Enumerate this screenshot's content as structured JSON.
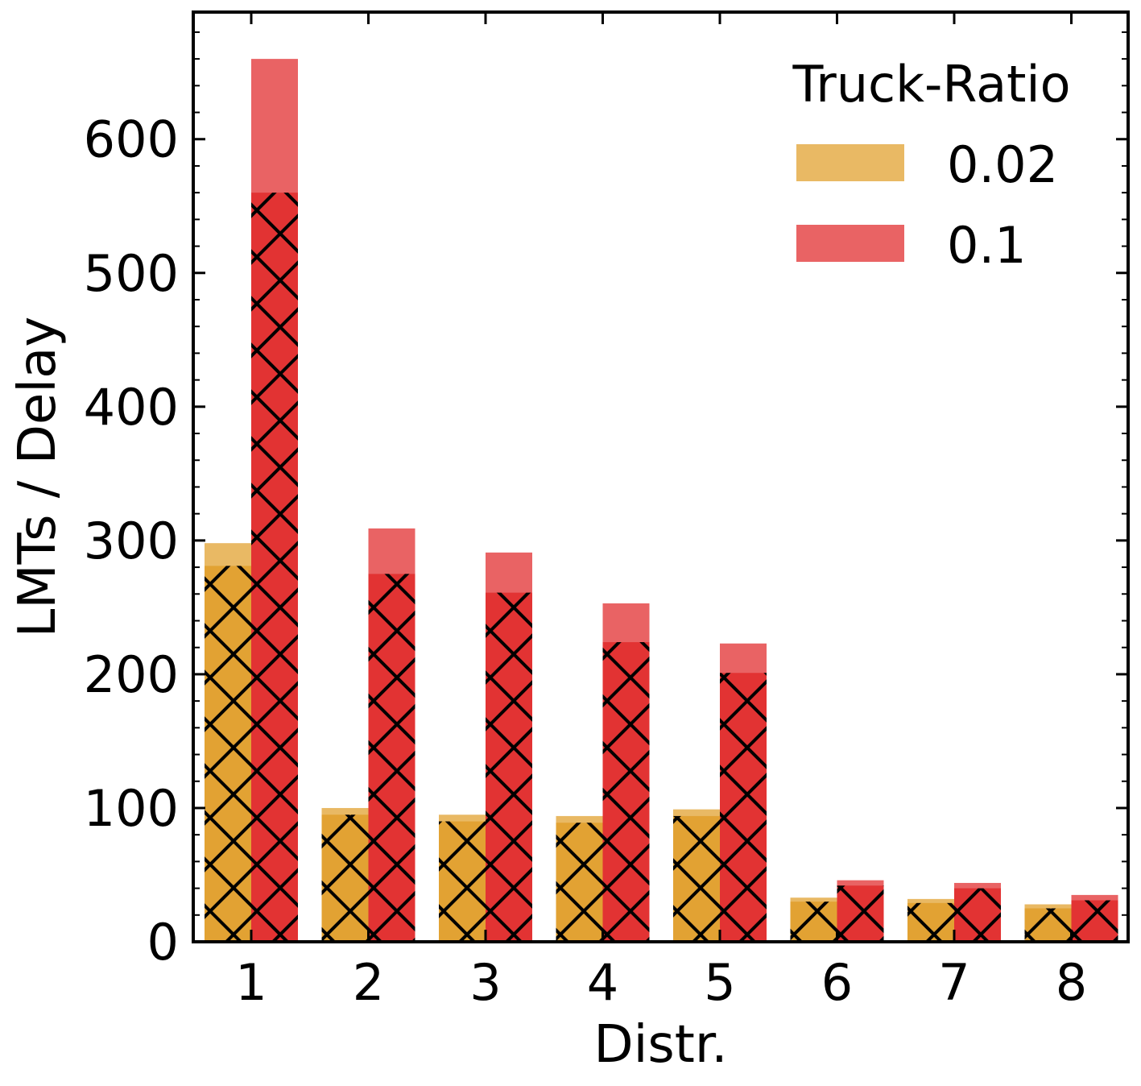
{
  "chart_data": {
    "type": "bar",
    "title": "",
    "xlabel": "Distr.",
    "ylabel": "LMTs / Delay",
    "categories": [
      "1",
      "2",
      "3",
      "4",
      "5",
      "6",
      "7",
      "8"
    ],
    "ylim": [
      0,
      695
    ],
    "yticks": [
      0,
      100,
      200,
      300,
      400,
      500,
      600
    ],
    "grid": false,
    "legend": {
      "title": "Truck-Ratio",
      "placement": "top-right"
    },
    "series": [
      {
        "name": "0.02",
        "color_total": "#e9b964",
        "color_hatched": "#e2a233",
        "total": [
          298,
          100,
          95,
          94,
          99,
          33,
          32,
          28
        ],
        "hatched": [
          281,
          95,
          90,
          89,
          94,
          30,
          29,
          25
        ]
      },
      {
        "name": "0.1",
        "color_total": "#e96364",
        "color_hatched": "#e23333",
        "total": [
          660,
          309,
          291,
          253,
          223,
          46,
          44,
          35
        ],
        "hatched": [
          560,
          275,
          261,
          224,
          201,
          42,
          40,
          31
        ]
      }
    ]
  }
}
